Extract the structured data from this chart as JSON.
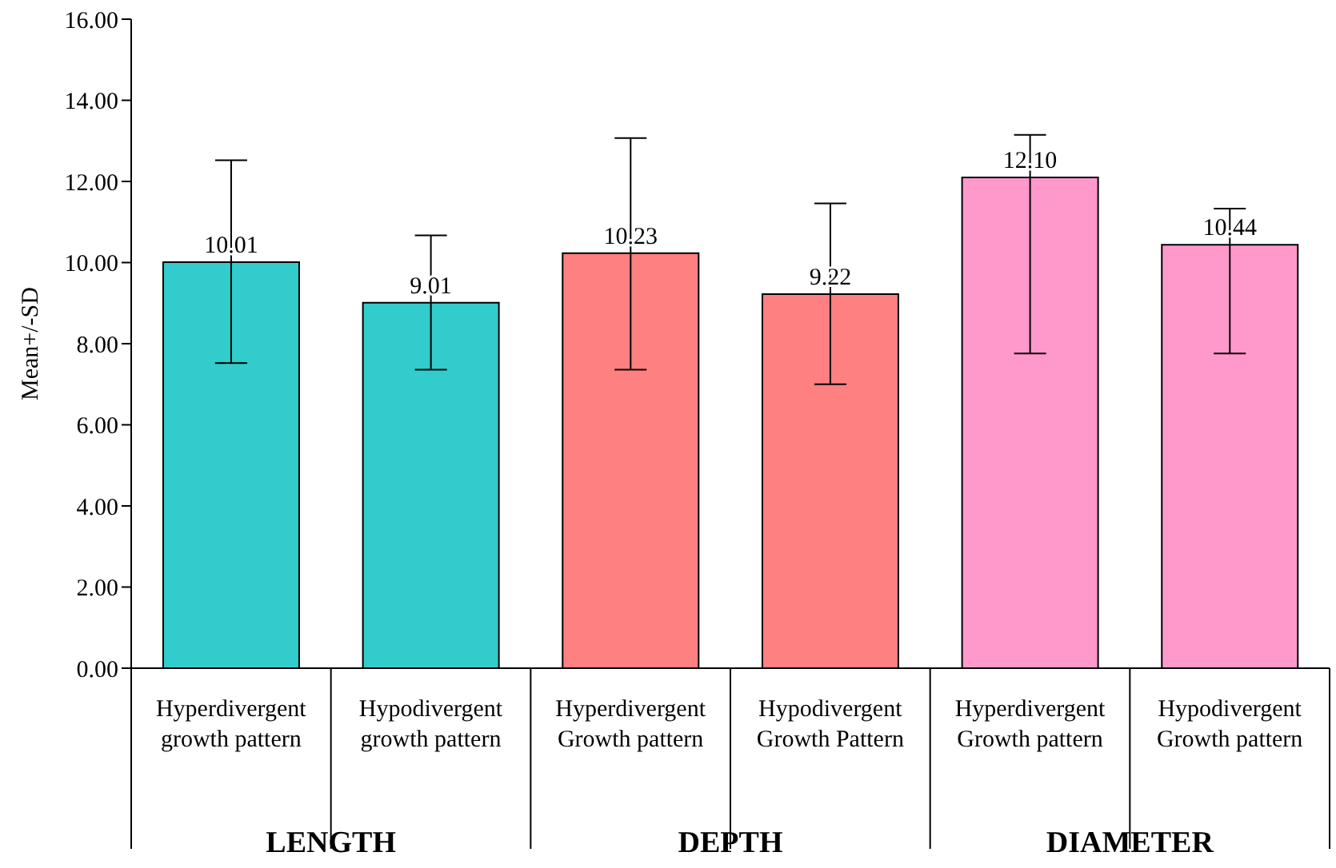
{
  "chart_data": {
    "type": "bar",
    "ylabel": "Mean+/-SD",
    "categories": [
      "Hyperdivergent growth pattern",
      "Hypodivergent growth pattern",
      "Hyperdivergent Growth pattern",
      "Hypodivergent Growth Pattern",
      "Hyperdivergent Growth pattern",
      "Hypodivergent Growth pattern"
    ],
    "values": [
      10.01,
      9.01,
      10.23,
      9.22,
      12.1,
      10.44
    ],
    "colors": [
      "#33cccc",
      "#33cccc",
      "#ff8080",
      "#ff8080",
      "#ff99cc",
      "#ff99cc"
    ],
    "value_labels": [
      "10.01",
      "9.01",
      "10.23",
      "9.22",
      "12.10",
      "10.44"
    ],
    "errors": [
      [
        7.52,
        12.52
      ],
      [
        7.36,
        10.67
      ],
      [
        7.36,
        13.07
      ],
      [
        7.0,
        11.46
      ],
      [
        7.76,
        13.15
      ],
      [
        7.76,
        11.33
      ]
    ],
    "ylim": [
      0,
      16
    ],
    "yticks": [
      {
        "value": 0,
        "label": "0.00"
      },
      {
        "value": 2,
        "label": "2.00"
      },
      {
        "value": 4,
        "label": "4.00"
      },
      {
        "value": 6,
        "label": "6.00"
      },
      {
        "value": 8,
        "label": "8.00"
      },
      {
        "value": 10,
        "label": "10.00"
      },
      {
        "value": 12,
        "label": "12.00"
      },
      {
        "value": 14,
        "label": "14.00"
      },
      {
        "value": 16,
        "label": "16.00"
      }
    ],
    "annotations": [
      "LENGTH",
      "DEPTH",
      "DIAMETER"
    ],
    "grid": false,
    "legend": false
  }
}
